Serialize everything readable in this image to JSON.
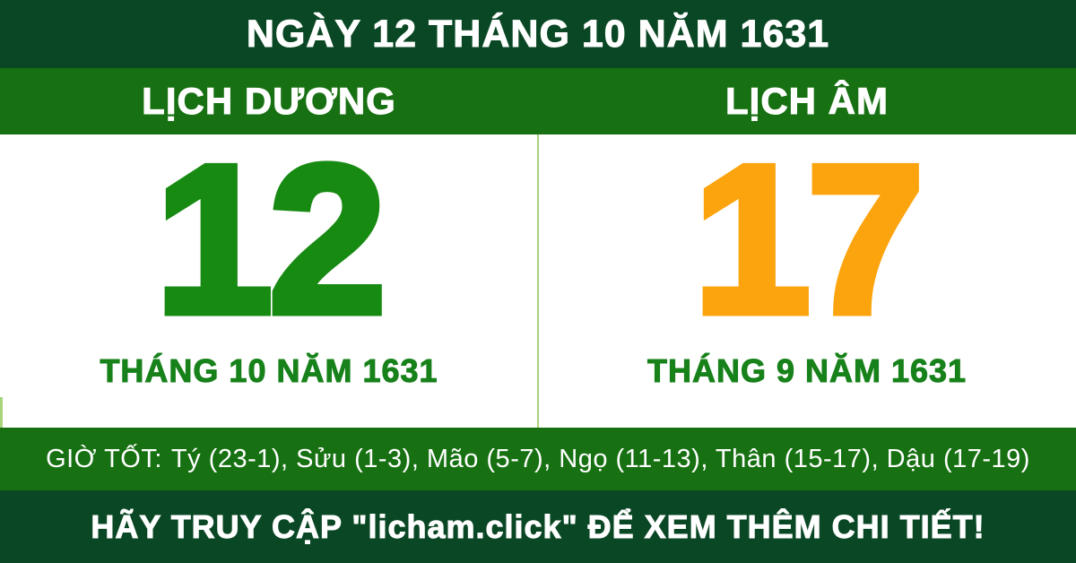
{
  "header": {
    "title": "NGÀY 12 THÁNG 10 NĂM 1631"
  },
  "solar": {
    "heading": "LỊCH DƯƠNG",
    "day": "12",
    "month_year": "THÁNG 10 NĂM 1631"
  },
  "lunar": {
    "heading": "LỊCH ÂM",
    "day": "17",
    "month_year": "THÁNG 9 NĂM 1631"
  },
  "good_hours": {
    "label": "GIỜ TỐT:",
    "text": "Tý (23-1), Sửu (1-3), Mão (5-7), Ngọ (11-13), Thân (15-17), Dậu (17-19)"
  },
  "footer": {
    "message": "HÃY TRUY CẬP \"licham.click\" ĐỂ XEM THÊM CHI TIẾT!"
  },
  "colors": {
    "dark-green": "#0a4724",
    "mid-green": "#177112",
    "solar-green": "#178a12",
    "label-green": "#17811a",
    "lunar-orange": "#fca40d",
    "accent-line": "#a9d47c",
    "text-white": "#ffffff"
  }
}
